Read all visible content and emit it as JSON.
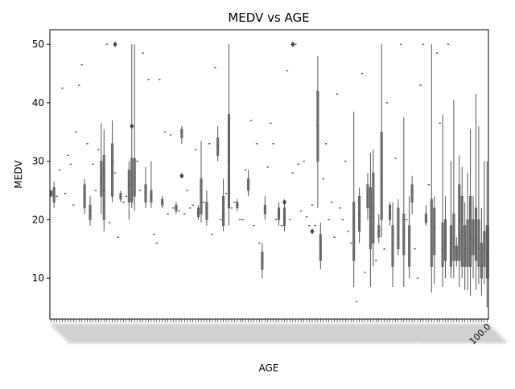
{
  "chart_data": {
    "type": "box",
    "title": "MEDV vs AGE",
    "xlabel": "AGE",
    "ylabel": "MEDV",
    "ylim": [
      3.0,
      52.5
    ],
    "yticks": [
      10,
      20,
      30,
      40,
      50
    ],
    "x_tick_labels_visible": [
      "100.0"
    ],
    "x_tick_labels_note": "x tick labels overlap and are illegible; only the last label is partially readable",
    "box_color": "#555555",
    "grid": false,
    "legend": "none",
    "boxes": [
      [
        24.0,
        24.0,
        24.5,
        25.0,
        25.0
      ],
      [
        22.0,
        23.0,
        24.5,
        25.5,
        26.5
      ],
      [
        24.0,
        24.0,
        24.0,
        24.0,
        24.0
      ],
      [
        28.5,
        28.5,
        28.5,
        28.5,
        28.5
      ],
      [
        42.5,
        42.5,
        42.5,
        42.5,
        42.5
      ],
      [
        24.5,
        24.5,
        24.5,
        24.5,
        24.5
      ],
      [
        31.0,
        31.0,
        31.0,
        31.0,
        31.0
      ],
      [
        29.5,
        29.5,
        29.5,
        29.5,
        29.5
      ],
      [
        22.5,
        22.5,
        22.5,
        22.5,
        22.5
      ],
      [
        35.0,
        35.0,
        35.0,
        35.0,
        35.0
      ],
      [
        43.0,
        43.0,
        43.0,
        43.0,
        43.0
      ],
      [
        46.5,
        46.5,
        46.5,
        46.5,
        46.5
      ],
      [
        21.0,
        22.0,
        24.0,
        26.0,
        27.0
      ],
      [
        33.0,
        33.0,
        33.0,
        33.0,
        33.0
      ],
      [
        19.0,
        20.0,
        21.5,
        22.5,
        24.0
      ],
      [
        29.5,
        29.5,
        29.5,
        29.5,
        29.5
      ],
      [
        25.0,
        25.0,
        25.0,
        25.0,
        25.0
      ],
      [
        32.0,
        32.0,
        32.0,
        32.0,
        32.0
      ],
      [
        21.0,
        24.0,
        27.0,
        30.0,
        36.5
      ],
      [
        18.0,
        20.0,
        25.0,
        31.0,
        35.5
      ],
      [
        50.0,
        50.0,
        50.0,
        50.0,
        50.0
      ],
      [
        19.5,
        19.5,
        19.5,
        19.5,
        19.5
      ],
      [
        23.0,
        24.0,
        30.0,
        33.0,
        37.0
      ],
      [
        28.0,
        28.0,
        28.0,
        28.0,
        28.0
      ],
      [
        17.0,
        17.0,
        17.0,
        17.0,
        17.0
      ],
      [
        23.0,
        23.5,
        24.0,
        24.5,
        25.0
      ],
      [
        23.0,
        23.0,
        23.0,
        23.0,
        23.0
      ],
      [
        24.0,
        24.0,
        24.0,
        24.0,
        24.0
      ],
      [
        20.0,
        23.0,
        26.0,
        28.5,
        30.0
      ],
      [
        22.0,
        23.0,
        23.5,
        30.5,
        50.0
      ],
      [
        21.5,
        24.0,
        27.0,
        30.5,
        50.0
      ],
      [
        30.0,
        30.0,
        30.0,
        30.0,
        30.0
      ],
      [
        25.0,
        25.0,
        25.0,
        25.0,
        25.0
      ],
      [
        48.5,
        48.5,
        48.5,
        48.5,
        48.5
      ],
      [
        22.0,
        23.0,
        24.5,
        26.0,
        29.0
      ],
      [
        44.0,
        44.0,
        44.0,
        44.0,
        44.0
      ],
      [
        22.0,
        23.0,
        24.0,
        25.0,
        30.0
      ],
      [
        17.5,
        17.5,
        17.5,
        17.5,
        17.5
      ],
      [
        16.0,
        16.0,
        16.0,
        16.0,
        16.0
      ],
      [
        44.0,
        44.0,
        44.0,
        44.0,
        44.0
      ],
      [
        22.0,
        22.5,
        23.0,
        23.5,
        24.0
      ],
      [
        35.0,
        35.0,
        35.0,
        35.0,
        35.0
      ],
      [
        21.0,
        21.0,
        21.0,
        21.0,
        21.0
      ],
      [
        34.5,
        34.5,
        34.5,
        34.5,
        34.5
      ],
      [
        22.0,
        22.0,
        22.0,
        22.0,
        22.0
      ],
      [
        21.0,
        21.5,
        22.0,
        22.5,
        23.0
      ],
      [
        21.5,
        21.5,
        21.5,
        21.5,
        21.5
      ],
      [
        33.0,
        34.0,
        35.0,
        35.5,
        36.0
      ],
      [
        21.0,
        21.0,
        21.0,
        21.0,
        21.0
      ],
      [
        25.0,
        25.0,
        25.0,
        25.0,
        25.0
      ],
      [
        22.0,
        22.0,
        22.0,
        22.0,
        22.0
      ],
      [
        22.5,
        22.5,
        22.5,
        22.5,
        22.5
      ],
      [
        32.0,
        32.0,
        32.0,
        32.0,
        32.0
      ],
      [
        20.0,
        20.5,
        21.0,
        22.0,
        22.5
      ],
      [
        19.5,
        21.0,
        23.0,
        27.0,
        33.5
      ],
      [
        23.0,
        23.0,
        23.0,
        23.0,
        23.0
      ],
      [
        19.0,
        20.0,
        22.0,
        23.0,
        25.0
      ],
      [
        33.0,
        33.0,
        33.0,
        33.0,
        33.0
      ],
      [
        17.5,
        17.5,
        17.5,
        17.5,
        17.5
      ],
      [
        46.0,
        46.0,
        46.0,
        46.0,
        46.0
      ],
      [
        30.0,
        31.0,
        32.5,
        34.0,
        36.0
      ],
      [
        20.0,
        20.0,
        20.0,
        20.0,
        20.0
      ],
      [
        18.0,
        19.0,
        21.0,
        24.0,
        27.0
      ],
      [
        24.5,
        24.5,
        24.5,
        24.5,
        24.5
      ],
      [
        19.0,
        22.0,
        30.0,
        38.0,
        50.0
      ],
      [
        22.0,
        22.0,
        22.0,
        22.0,
        22.0
      ],
      [
        23.0,
        23.0,
        23.0,
        23.0,
        23.0
      ],
      [
        21.5,
        22.0,
        22.5,
        23.0,
        23.5
      ],
      [
        20.0,
        20.0,
        20.0,
        20.0,
        20.0
      ],
      [
        20.0,
        20.0,
        20.0,
        20.0,
        20.0
      ],
      [
        28.5,
        28.5,
        28.5,
        28.5,
        28.5
      ],
      [
        24.0,
        25.0,
        26.5,
        27.0,
        28.5
      ],
      [
        37.0,
        37.0,
        37.0,
        37.0,
        37.0
      ],
      [
        19.0,
        19.0,
        19.0,
        19.0,
        19.0
      ],
      [
        33.0,
        33.0,
        33.0,
        33.0,
        33.0
      ],
      [
        16.0,
        16.0,
        16.0,
        16.0,
        16.0
      ],
      [
        10.0,
        11.5,
        13.0,
        14.5,
        16.0
      ],
      [
        20.0,
        21.0,
        22.0,
        22.5,
        24.0
      ],
      [
        29.0,
        29.0,
        29.0,
        29.0,
        29.0
      ],
      [
        36.5,
        36.5,
        36.5,
        36.5,
        36.5
      ],
      [
        33.0,
        33.0,
        33.0,
        33.0,
        33.0
      ],
      [
        20.0,
        20.0,
        20.0,
        20.0,
        20.0
      ],
      [
        19.0,
        20.0,
        21.0,
        22.0,
        23.0
      ],
      [
        19.0,
        19.0,
        19.0,
        19.0,
        19.0
      ],
      [
        18.0,
        19.0,
        20.5,
        22.0,
        23.0
      ],
      [
        45.5,
        45.5,
        45.5,
        45.5,
        45.5
      ],
      [
        20.0,
        20.0,
        20.0,
        20.0,
        20.0
      ],
      [
        28.0,
        28.0,
        28.0,
        28.0,
        28.0
      ],
      [
        50.0,
        50.0,
        50.0,
        50.0,
        50.0
      ],
      [
        29.5,
        29.5,
        29.5,
        29.5,
        29.5
      ],
      [
        21.5,
        21.5,
        21.5,
        21.5,
        21.5
      ],
      [
        30.0,
        30.0,
        30.0,
        30.0,
        30.0
      ],
      [
        20.5,
        20.5,
        20.5,
        20.5,
        20.5
      ],
      [
        19.0,
        19.0,
        19.0,
        19.0,
        19.0
      ],
      [
        22.5,
        22.5,
        22.5,
        22.5,
        22.5
      ],
      [
        19.0,
        19.0,
        19.0,
        19.0,
        19.0
      ],
      [
        22.0,
        30.0,
        36.0,
        42.0,
        48.0
      ],
      [
        11.5,
        13.0,
        14.5,
        17.5,
        19.5
      ],
      [
        27.0,
        27.0,
        27.0,
        27.0,
        27.0
      ],
      [
        33.0,
        33.0,
        33.0,
        33.0,
        33.0
      ],
      [
        20.0,
        20.0,
        20.0,
        20.0,
        20.0
      ],
      [
        23.0,
        23.0,
        23.0,
        23.0,
        23.0
      ],
      [
        17.0,
        17.0,
        17.0,
        17.0,
        17.0
      ],
      [
        41.5,
        41.5,
        41.5,
        41.5,
        41.5
      ],
      [
        22.0,
        22.0,
        22.0,
        22.0,
        22.0
      ],
      [
        20.0,
        20.0,
        20.0,
        20.0,
        20.0
      ],
      [
        30.0,
        30.0,
        30.0,
        30.0,
        30.0
      ],
      [
        18.0,
        18.0,
        18.0,
        18.0,
        18.0
      ],
      [
        16.0,
        16.0,
        16.0,
        16.0,
        16.0
      ],
      [
        8.5,
        13.0,
        20.0,
        23.0,
        38.5
      ],
      [
        6.0,
        6.0,
        6.0,
        6.0,
        6.0
      ],
      [
        16.0,
        18.0,
        21.0,
        24.0,
        25.5
      ],
      [
        45.0,
        45.0,
        45.0,
        45.0,
        45.0
      ],
      [
        11.0,
        11.0,
        11.0,
        11.0,
        11.0
      ],
      [
        20.0,
        22.0,
        24.0,
        26.0,
        28.0
      ],
      [
        8.5,
        15.0,
        20.5,
        25.5,
        31.5
      ],
      [
        12.0,
        16.0,
        22.0,
        28.0,
        32.0
      ],
      [
        13.0,
        13.0,
        13.0,
        13.0,
        13.0
      ],
      [
        16.0,
        17.0,
        18.0,
        19.0,
        21.0
      ],
      [
        17.0,
        20.0,
        27.0,
        35.0,
        50.0
      ],
      [
        15.0,
        15.0,
        15.0,
        15.0,
        15.0
      ],
      [
        40.0,
        40.0,
        40.0,
        40.0,
        40.0
      ],
      [
        19.0,
        20.0,
        21.0,
        22.5,
        23.0
      ],
      [
        8.5,
        12.0,
        16.0,
        19.0,
        23.0
      ],
      [
        30.5,
        30.5,
        30.5,
        30.5,
        30.5
      ],
      [
        14.0,
        15.0,
        17.0,
        22.0,
        23.5
      ],
      [
        50.0,
        50.0,
        50.0,
        50.0,
        50.0
      ],
      [
        8.5,
        14.0,
        18.0,
        21.0,
        37.5
      ],
      [
        20.0,
        20.0,
        20.0,
        20.0,
        20.0
      ],
      [
        10.0,
        12.0,
        16.0,
        19.0,
        24.0
      ],
      [
        21.0,
        23.0,
        25.0,
        26.0,
        27.5
      ],
      [
        15.0,
        15.0,
        15.0,
        15.0,
        15.0
      ],
      [
        10.0,
        10.0,
        10.0,
        10.0,
        10.0
      ],
      [
        43.0,
        43.0,
        43.0,
        43.0,
        43.0
      ],
      [
        50.0,
        50.0,
        50.0,
        50.0,
        50.0
      ],
      [
        19.0,
        19.5,
        20.0,
        21.0,
        22.5
      ],
      [
        26.0,
        26.0,
        26.0,
        26.0,
        26.0
      ],
      [
        7.5,
        12.0,
        19.0,
        23.5,
        50.0
      ],
      [
        9.0,
        14.0,
        18.5,
        22.0,
        24.0
      ],
      [
        48.5,
        48.5,
        48.5,
        48.5,
        48.5
      ],
      [
        36.5,
        36.5,
        36.5,
        36.5,
        36.5
      ],
      [
        8.5,
        12.0,
        15.0,
        19.5,
        38.0
      ],
      [
        10.0,
        13.0,
        16.0,
        20.0,
        24.0
      ],
      [
        50.0,
        50.0,
        50.0,
        50.0,
        50.0
      ],
      [
        10.0,
        12.0,
        16.0,
        19.0,
        30.0
      ],
      [
        10.0,
        13.0,
        15.5,
        21.0,
        40.5
      ],
      [
        12.0,
        13.0,
        14.5,
        15.5,
        17.0
      ],
      [
        8.5,
        13.0,
        20.0,
        26.0,
        31.0
      ],
      [
        10.0,
        12.0,
        18.0,
        24.0,
        29.0
      ],
      [
        8.0,
        12.0,
        15.0,
        19.0,
        23.0
      ],
      [
        8.0,
        12.0,
        15.0,
        20.0,
        28.0
      ],
      [
        7.0,
        12.0,
        17.0,
        24.0,
        35.5
      ],
      [
        10.0,
        14.0,
        16.0,
        20.0,
        24.0
      ],
      [
        8.0,
        13.0,
        17.0,
        22.0,
        41.5
      ],
      [
        9.0,
        12.0,
        15.0,
        20.0,
        36.0
      ],
      [
        7.0,
        10.0,
        12.0,
        16.0,
        22.0
      ],
      [
        9.0,
        12.0,
        15.0,
        18.0,
        30.0
      ],
      [
        5.0,
        10.0,
        14.0,
        19.0,
        30.0
      ]
    ],
    "outliers": [
      [
        23.0,
        50.0
      ],
      [
        29.0,
        36.0
      ],
      [
        47.0,
        27.5
      ],
      [
        84.0,
        23.0
      ],
      [
        87.0,
        50.0
      ],
      [
        94.0,
        18.0
      ]
    ]
  }
}
